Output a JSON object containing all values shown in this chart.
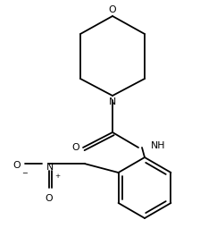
{
  "bg_color": "#ffffff",
  "line_color": "#000000",
  "line_width": 1.3,
  "font_size": 7.8,
  "figsize": [
    2.24,
    2.74
  ],
  "dpi": 100,
  "xlim": [
    0,
    224
  ],
  "ylim": [
    0,
    274
  ]
}
